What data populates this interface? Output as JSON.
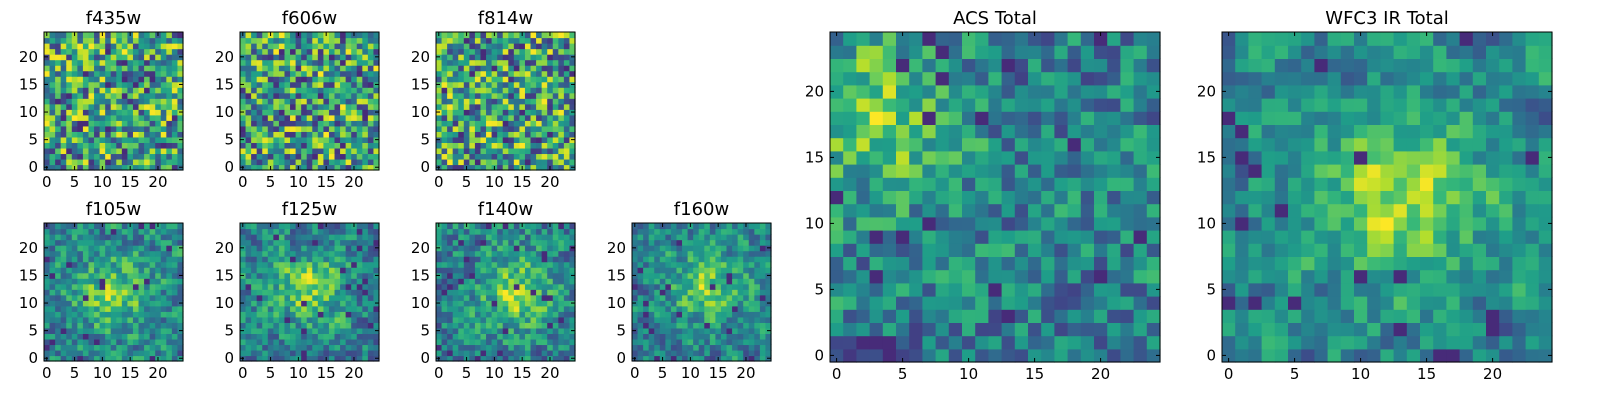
{
  "chart_data": [
    {
      "type": "heatmap",
      "title": "f435w",
      "colormap": "viridis",
      "grid_size": 25,
      "xlim": [
        0,
        24
      ],
      "ylim": [
        0,
        24
      ],
      "xticks": [
        0,
        5,
        10,
        15,
        20
      ],
      "yticks": [
        0,
        5,
        10,
        15,
        20
      ],
      "blob": null,
      "noise": 0.95,
      "seed": 11
    },
    {
      "type": "heatmap",
      "title": "f606w",
      "colormap": "viridis",
      "grid_size": 25,
      "xlim": [
        0,
        24
      ],
      "ylim": [
        0,
        24
      ],
      "xticks": [
        0,
        5,
        10,
        15,
        20
      ],
      "yticks": [
        0,
        5,
        10,
        15,
        20
      ],
      "blob": null,
      "noise": 0.95,
      "seed": 23
    },
    {
      "type": "heatmap",
      "title": "f814w",
      "colormap": "viridis",
      "grid_size": 25,
      "xlim": [
        0,
        24
      ],
      "ylim": [
        0,
        24
      ],
      "xticks": [
        0,
        5,
        10,
        15,
        20
      ],
      "yticks": [
        0,
        5,
        10,
        15,
        20
      ],
      "blob": null,
      "noise": 0.95,
      "seed": 37
    },
    {
      "type": "heatmap",
      "title": "f105w",
      "colormap": "viridis",
      "grid_size": 25,
      "xlim": [
        0,
        24
      ],
      "ylim": [
        0,
        24
      ],
      "xticks": [
        0,
        5,
        10,
        15,
        20
      ],
      "yticks": [
        0,
        5,
        10,
        15,
        20
      ],
      "blob": [
        12,
        12
      ],
      "noise": 0.6,
      "seed": 41
    },
    {
      "type": "heatmap",
      "title": "f125w",
      "colormap": "viridis",
      "grid_size": 25,
      "xlim": [
        0,
        24
      ],
      "ylim": [
        0,
        24
      ],
      "xticks": [
        0,
        5,
        10,
        15,
        20
      ],
      "yticks": [
        0,
        5,
        10,
        15,
        20
      ],
      "blob": [
        12,
        13
      ],
      "noise": 0.6,
      "seed": 53
    },
    {
      "type": "heatmap",
      "title": "f140w",
      "colormap": "viridis",
      "grid_size": 25,
      "xlim": [
        0,
        24
      ],
      "ylim": [
        0,
        24
      ],
      "xticks": [
        0,
        5,
        10,
        15,
        20
      ],
      "yticks": [
        0,
        5,
        10,
        15,
        20
      ],
      "blob": [
        14,
        12
      ],
      "noise": 0.6,
      "seed": 67
    },
    {
      "type": "heatmap",
      "title": "f160w",
      "colormap": "viridis",
      "grid_size": 25,
      "xlim": [
        0,
        24
      ],
      "ylim": [
        0,
        24
      ],
      "xticks": [
        0,
        5,
        10,
        15,
        20
      ],
      "yticks": [
        0,
        5,
        10,
        15,
        20
      ],
      "blob": [
        13,
        13
      ],
      "noise": 0.55,
      "seed": 79
    },
    {
      "type": "heatmap",
      "title": "ACS Total",
      "colormap": "viridis",
      "grid_size": 25,
      "xlim": [
        0,
        24
      ],
      "ylim": [
        0,
        24
      ],
      "xticks": [
        0,
        5,
        10,
        15,
        20
      ],
      "yticks": [
        0,
        5,
        10,
        15,
        20
      ],
      "blob": [
        3,
        18
      ],
      "noise": 0.7,
      "seed": 97
    },
    {
      "type": "heatmap",
      "title": "WFC3 IR Total",
      "colormap": "viridis",
      "grid_size": 25,
      "xlim": [
        0,
        24
      ],
      "ylim": [
        0,
        24
      ],
      "xticks": [
        0,
        5,
        10,
        15,
        20
      ],
      "yticks": [
        0,
        5,
        10,
        15,
        20
      ],
      "blob": [
        13,
        12
      ],
      "noise": 0.4,
      "seed": 113
    }
  ]
}
